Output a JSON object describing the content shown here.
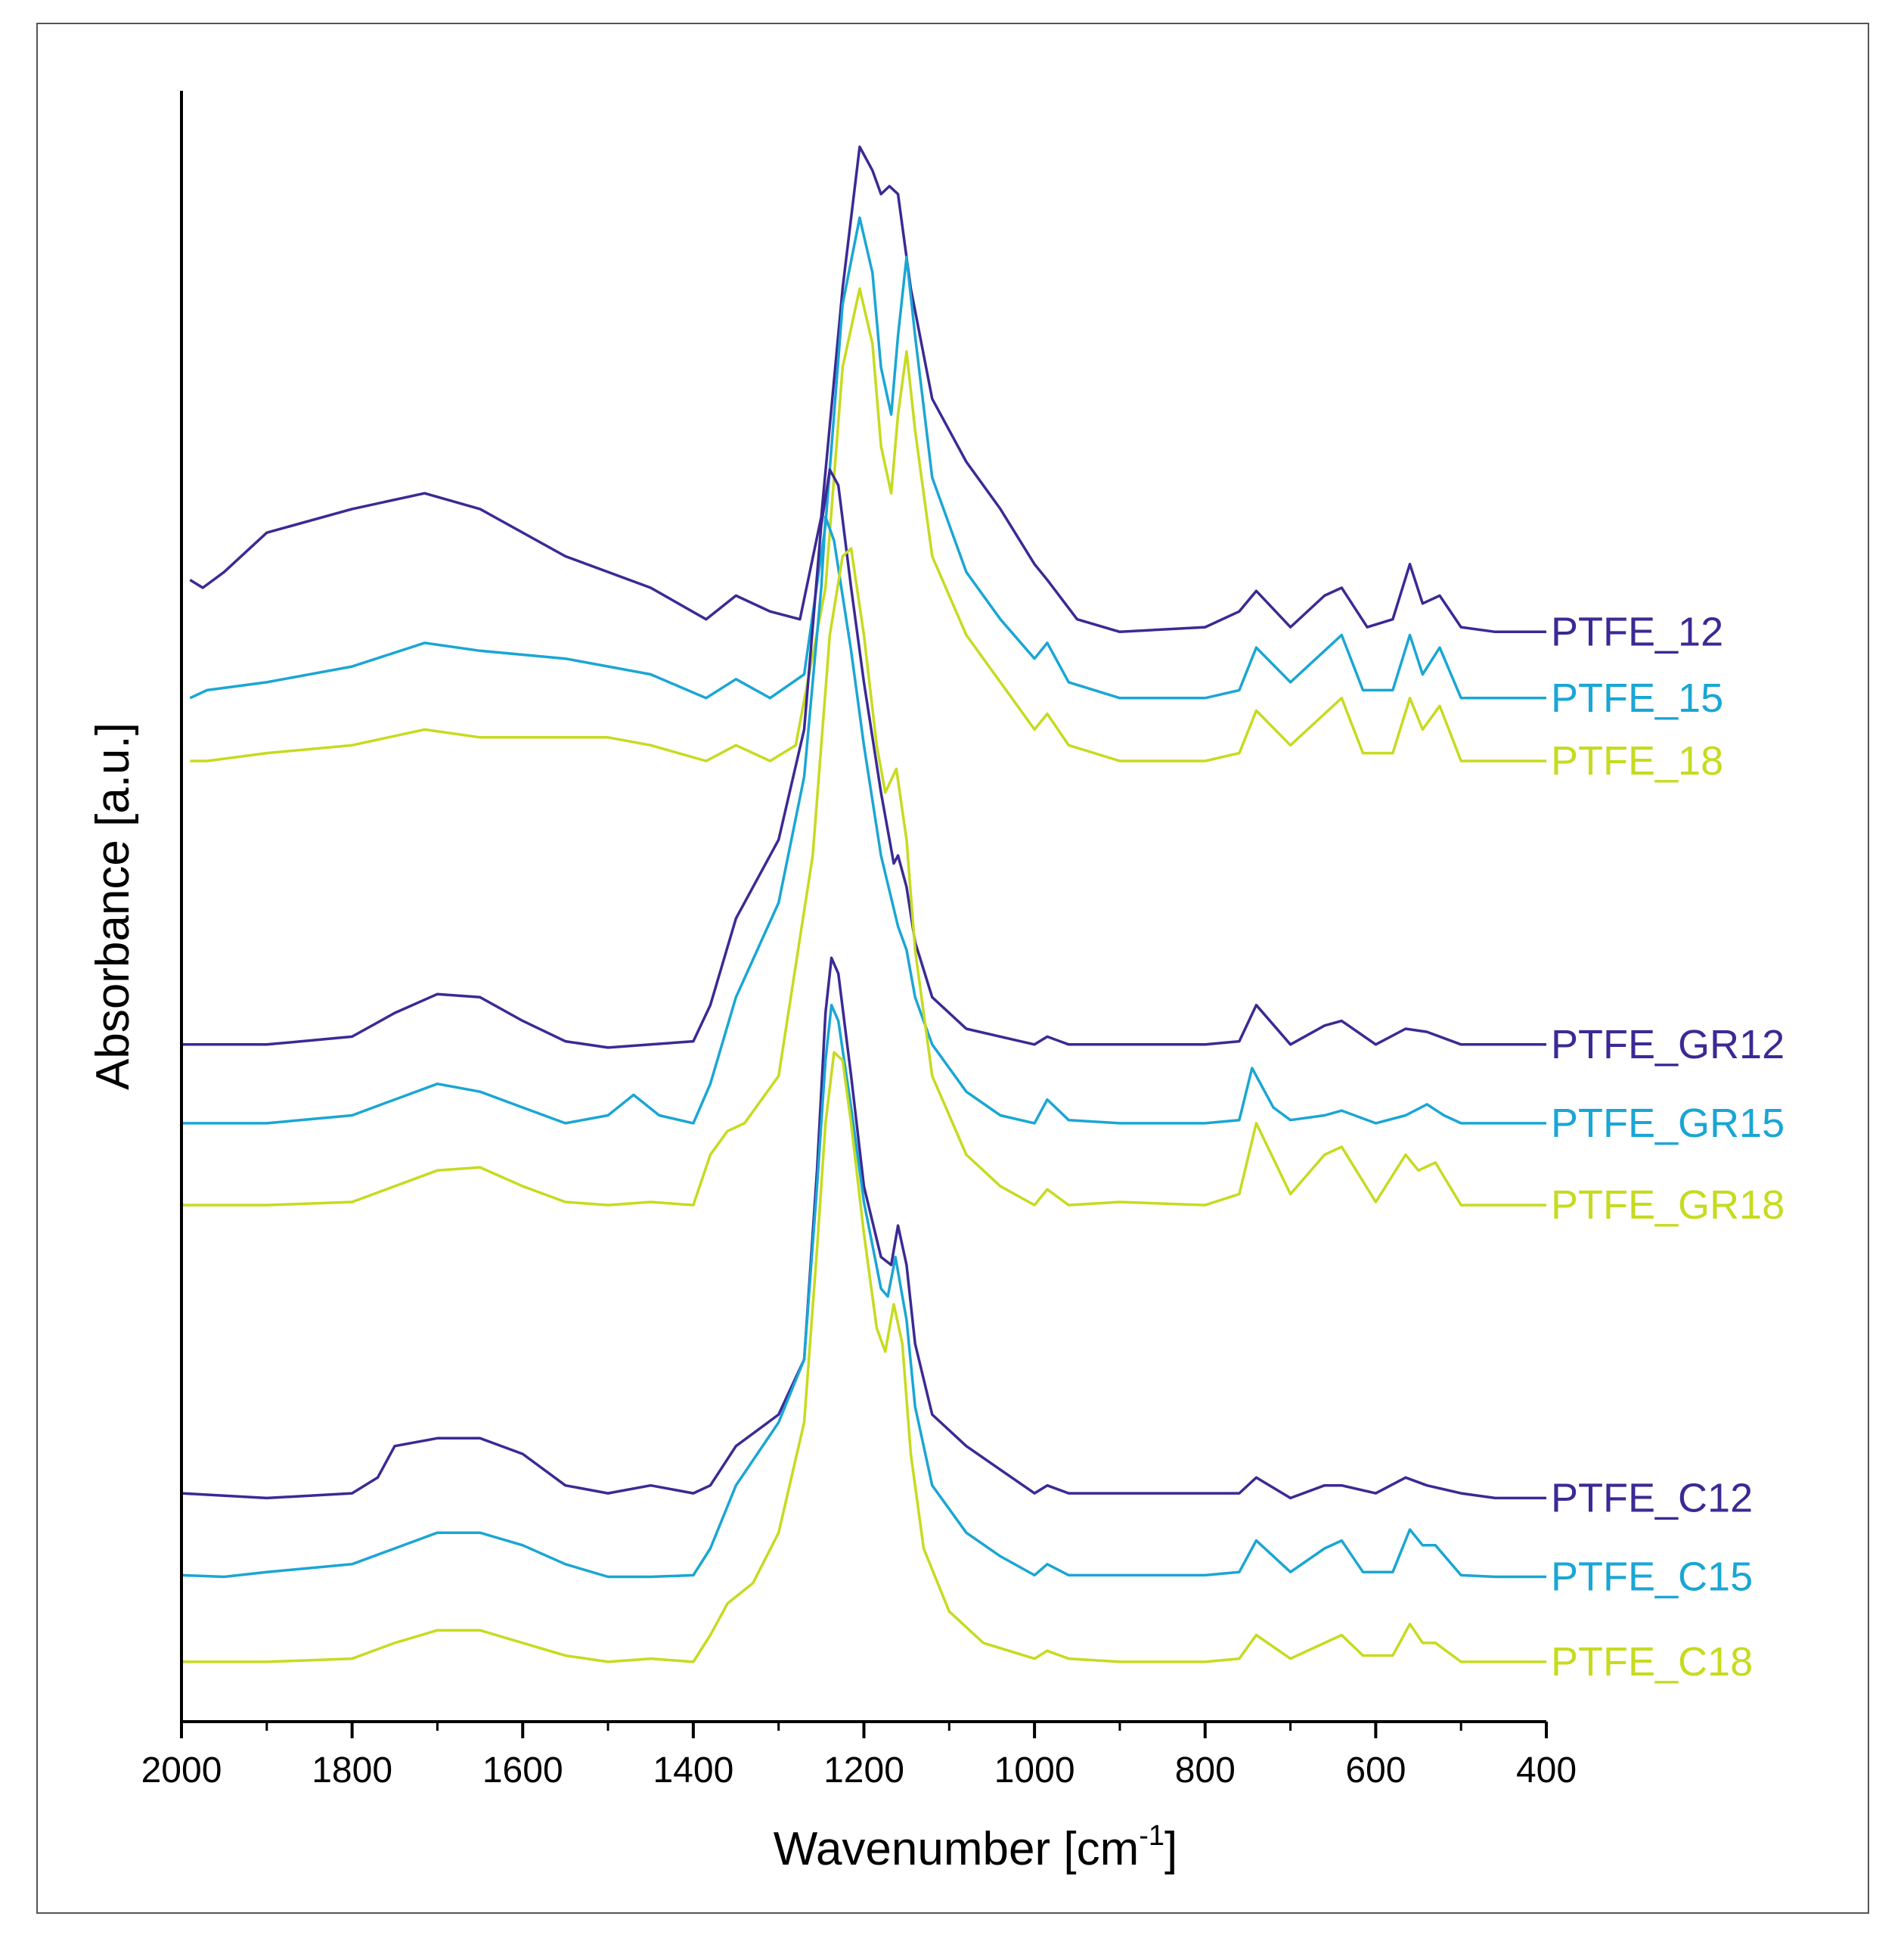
{
  "colors": {
    "dark": "#3a2a94",
    "mid": "#1aa6d4",
    "light": "#c6db1f",
    "axis": "#000000",
    "frame": "#555555"
  },
  "chart_data": {
    "type": "line",
    "title": "",
    "xlabel": "Wavenumber [cm",
    "xlabel_sup": "-1",
    "xlabel_end": "]",
    "ylabel": "Absorbance [a.u.]",
    "xlim": [
      2000,
      400
    ],
    "x_reversed": true,
    "y_ticks_shown": false,
    "x_ticks": [
      2000,
      1800,
      1600,
      1400,
      1200,
      1000,
      800,
      600,
      400
    ],
    "x_minor_step": 100,
    "note": "Spectra stacked with vertical offsets; y values below are approximate absorbance (a.u.) including offsets.",
    "ylim": [
      0,
      10.5
    ],
    "series": [
      {
        "name": "PTFE_12",
        "color": "dark",
        "x": [
          1990,
          1975,
          1950,
          1900,
          1800,
          1715,
          1650,
          1550,
          1450,
          1385,
          1350,
          1310,
          1275,
          1250,
          1225,
          1205,
          1190,
          1180,
          1170,
          1160,
          1145,
          1120,
          1080,
          1040,
          1000,
          985,
          950,
          900,
          800,
          760,
          740,
          700,
          660,
          640,
          610,
          580,
          560,
          545,
          525,
          500,
          460,
          400
        ],
        "y": [
          7.25,
          7.2,
          7.3,
          7.55,
          7.7,
          7.8,
          7.7,
          7.4,
          7.2,
          7.0,
          7.15,
          7.05,
          7.0,
          7.65,
          9.1,
          10.0,
          9.85,
          9.7,
          9.75,
          9.7,
          9.1,
          8.4,
          8.0,
          7.7,
          7.35,
          7.25,
          7.0,
          6.92,
          6.95,
          7.05,
          7.18,
          6.95,
          7.15,
          7.2,
          6.95,
          7.0,
          7.35,
          7.1,
          7.15,
          6.95,
          6.92,
          6.92
        ]
      },
      {
        "name": "PTFE_15",
        "color": "mid",
        "x": [
          1990,
          1970,
          1900,
          1800,
          1715,
          1650,
          1550,
          1450,
          1385,
          1350,
          1310,
          1270,
          1245,
          1225,
          1205,
          1190,
          1180,
          1168,
          1160,
          1150,
          1140,
          1120,
          1080,
          1040,
          1000,
          985,
          960,
          900,
          800,
          760,
          740,
          700,
          660,
          640,
          615,
          580,
          560,
          545,
          525,
          500,
          460,
          400
        ],
        "y": [
          6.5,
          6.55,
          6.6,
          6.7,
          6.85,
          6.8,
          6.75,
          6.65,
          6.5,
          6.62,
          6.5,
          6.65,
          7.6,
          9.0,
          9.55,
          9.2,
          8.6,
          8.3,
          8.8,
          9.3,
          8.8,
          7.9,
          7.3,
          7.0,
          6.75,
          6.85,
          6.6,
          6.5,
          6.5,
          6.55,
          6.82,
          6.6,
          6.8,
          6.9,
          6.55,
          6.55,
          6.9,
          6.65,
          6.82,
          6.5,
          6.5,
          6.5
        ]
      },
      {
        "name": "PTFE_18",
        "color": "light",
        "x": [
          1990,
          1970,
          1900,
          1800,
          1715,
          1650,
          1500,
          1450,
          1385,
          1350,
          1310,
          1280,
          1245,
          1225,
          1205,
          1190,
          1180,
          1168,
          1160,
          1150,
          1140,
          1120,
          1080,
          1040,
          1000,
          985,
          960,
          900,
          800,
          760,
          740,
          700,
          660,
          640,
          615,
          580,
          560,
          545,
          525,
          500,
          460,
          400
        ],
        "y": [
          6.1,
          6.1,
          6.15,
          6.2,
          6.3,
          6.25,
          6.25,
          6.2,
          6.1,
          6.2,
          6.1,
          6.2,
          7.2,
          8.6,
          9.1,
          8.75,
          8.1,
          7.8,
          8.3,
          8.7,
          8.2,
          7.4,
          6.9,
          6.6,
          6.3,
          6.4,
          6.2,
          6.1,
          6.1,
          6.15,
          6.42,
          6.2,
          6.4,
          6.5,
          6.15,
          6.15,
          6.5,
          6.3,
          6.45,
          6.1,
          6.1,
          6.1
        ]
      },
      {
        "name": "PTFE_GR12",
        "color": "dark",
        "x": [
          2000,
          1900,
          1800,
          1750,
          1700,
          1650,
          1600,
          1550,
          1500,
          1450,
          1400,
          1380,
          1350,
          1300,
          1270,
          1250,
          1240,
          1230,
          1215,
          1200,
          1180,
          1165,
          1160,
          1150,
          1140,
          1120,
          1080,
          1040,
          1000,
          985,
          960,
          900,
          800,
          760,
          740,
          700,
          660,
          640,
          600,
          565,
          540,
          500,
          460,
          400
        ],
        "y": [
          4.3,
          4.3,
          4.35,
          4.5,
          4.62,
          4.6,
          4.45,
          4.32,
          4.28,
          4.3,
          4.32,
          4.55,
          5.1,
          5.6,
          6.3,
          7.6,
          7.95,
          7.85,
          7.2,
          6.6,
          5.9,
          5.45,
          5.5,
          5.3,
          4.95,
          4.6,
          4.4,
          4.35,
          4.3,
          4.35,
          4.3,
          4.3,
          4.3,
          4.32,
          4.55,
          4.3,
          4.42,
          4.45,
          4.3,
          4.4,
          4.38,
          4.3,
          4.3,
          4.3
        ]
      },
      {
        "name": "PTFE_GR15",
        "color": "mid",
        "x": [
          2000,
          1900,
          1800,
          1750,
          1700,
          1650,
          1600,
          1550,
          1500,
          1470,
          1440,
          1400,
          1380,
          1350,
          1300,
          1270,
          1250,
          1245,
          1235,
          1215,
          1200,
          1180,
          1160,
          1150,
          1140,
          1120,
          1080,
          1040,
          1000,
          985,
          960,
          900,
          800,
          760,
          745,
          720,
          700,
          660,
          640,
          600,
          565,
          540,
          520,
          500,
          460,
          400
        ],
        "y": [
          3.8,
          3.8,
          3.85,
          3.95,
          4.05,
          4.0,
          3.9,
          3.8,
          3.85,
          3.98,
          3.85,
          3.8,
          4.05,
          4.6,
          5.2,
          6.0,
          7.2,
          7.65,
          7.5,
          6.8,
          6.2,
          5.5,
          5.05,
          4.9,
          4.6,
          4.3,
          4.0,
          3.85,
          3.8,
          3.95,
          3.82,
          3.8,
          3.8,
          3.82,
          4.15,
          3.9,
          3.82,
          3.85,
          3.88,
          3.8,
          3.85,
          3.92,
          3.85,
          3.8,
          3.8,
          3.8
        ]
      },
      {
        "name": "PTFE_GR18",
        "color": "light",
        "x": [
          2000,
          1900,
          1800,
          1750,
          1700,
          1650,
          1600,
          1550,
          1500,
          1450,
          1400,
          1380,
          1360,
          1340,
          1300,
          1260,
          1240,
          1225,
          1215,
          1200,
          1185,
          1175,
          1162,
          1150,
          1140,
          1120,
          1080,
          1040,
          1000,
          985,
          960,
          900,
          800,
          760,
          740,
          700,
          660,
          640,
          600,
          565,
          550,
          530,
          500,
          460,
          400
        ],
        "y": [
          3.28,
          3.28,
          3.3,
          3.4,
          3.5,
          3.52,
          3.4,
          3.3,
          3.28,
          3.3,
          3.28,
          3.6,
          3.75,
          3.8,
          4.1,
          5.5,
          6.9,
          7.4,
          7.45,
          6.9,
          6.2,
          5.9,
          6.05,
          5.6,
          4.9,
          4.1,
          3.6,
          3.4,
          3.28,
          3.38,
          3.28,
          3.3,
          3.28,
          3.35,
          3.8,
          3.35,
          3.6,
          3.65,
          3.3,
          3.6,
          3.5,
          3.55,
          3.28,
          3.28,
          3.28
        ]
      },
      {
        "name": "PTFE_C12",
        "color": "dark",
        "x": [
          2000,
          1900,
          1800,
          1770,
          1750,
          1700,
          1650,
          1600,
          1550,
          1500,
          1450,
          1400,
          1380,
          1350,
          1300,
          1270,
          1255,
          1245,
          1238,
          1230,
          1215,
          1200,
          1180,
          1168,
          1160,
          1150,
          1140,
          1120,
          1080,
          1040,
          1000,
          985,
          960,
          900,
          800,
          760,
          740,
          700,
          660,
          640,
          600,
          565,
          540,
          500,
          460,
          400
        ],
        "y": [
          1.45,
          1.42,
          1.45,
          1.55,
          1.75,
          1.8,
          1.8,
          1.7,
          1.5,
          1.45,
          1.5,
          1.45,
          1.5,
          1.75,
          1.95,
          2.3,
          3.5,
          4.5,
          4.85,
          4.75,
          4.1,
          3.4,
          2.95,
          2.9,
          3.15,
          2.9,
          2.4,
          1.95,
          1.75,
          1.6,
          1.45,
          1.5,
          1.45,
          1.45,
          1.45,
          1.45,
          1.55,
          1.42,
          1.5,
          1.5,
          1.45,
          1.55,
          1.5,
          1.45,
          1.42,
          1.42
        ]
      },
      {
        "name": "PTFE_C15",
        "color": "mid",
        "x": [
          2000,
          1950,
          1900,
          1800,
          1750,
          1700,
          1650,
          1600,
          1550,
          1500,
          1450,
          1400,
          1380,
          1350,
          1300,
          1270,
          1255,
          1245,
          1238,
          1230,
          1215,
          1200,
          1180,
          1172,
          1163,
          1150,
          1140,
          1120,
          1080,
          1040,
          1000,
          985,
          960,
          900,
          800,
          760,
          740,
          700,
          660,
          640,
          615,
          580,
          560,
          545,
          530,
          500,
          460,
          400
        ],
        "y": [
          0.93,
          0.92,
          0.95,
          1.0,
          1.1,
          1.2,
          1.2,
          1.12,
          1.0,
          0.92,
          0.92,
          0.93,
          1.1,
          1.5,
          1.9,
          2.3,
          3.4,
          4.2,
          4.55,
          4.45,
          3.9,
          3.3,
          2.75,
          2.7,
          2.95,
          2.55,
          2.0,
          1.5,
          1.2,
          1.05,
          0.93,
          1.0,
          0.93,
          0.93,
          0.93,
          0.95,
          1.15,
          0.95,
          1.1,
          1.15,
          0.95,
          0.95,
          1.22,
          1.12,
          1.12,
          0.93,
          0.92,
          0.92
        ]
      },
      {
        "name": "PTFE_C18",
        "color": "light",
        "x": [
          2000,
          1950,
          1900,
          1800,
          1750,
          1700,
          1650,
          1600,
          1550,
          1500,
          1450,
          1400,
          1380,
          1360,
          1330,
          1300,
          1270,
          1255,
          1245,
          1235,
          1225,
          1215,
          1200,
          1185,
          1175,
          1165,
          1155,
          1145,
          1130,
          1100,
          1060,
          1000,
          985,
          960,
          900,
          800,
          760,
          740,
          700,
          660,
          640,
          615,
          580,
          560,
          545,
          530,
          500,
          460,
          400
        ],
        "y": [
          0.38,
          0.38,
          0.38,
          0.4,
          0.5,
          0.58,
          0.58,
          0.5,
          0.42,
          0.38,
          0.4,
          0.38,
          0.55,
          0.75,
          0.88,
          1.2,
          1.9,
          3.0,
          3.8,
          4.25,
          4.2,
          3.8,
          3.1,
          2.5,
          2.35,
          2.65,
          2.4,
          1.7,
          1.1,
          0.7,
          0.5,
          0.4,
          0.45,
          0.4,
          0.38,
          0.38,
          0.4,
          0.55,
          0.4,
          0.5,
          0.55,
          0.42,
          0.42,
          0.62,
          0.5,
          0.5,
          0.38,
          0.38,
          0.38
        ]
      }
    ]
  }
}
